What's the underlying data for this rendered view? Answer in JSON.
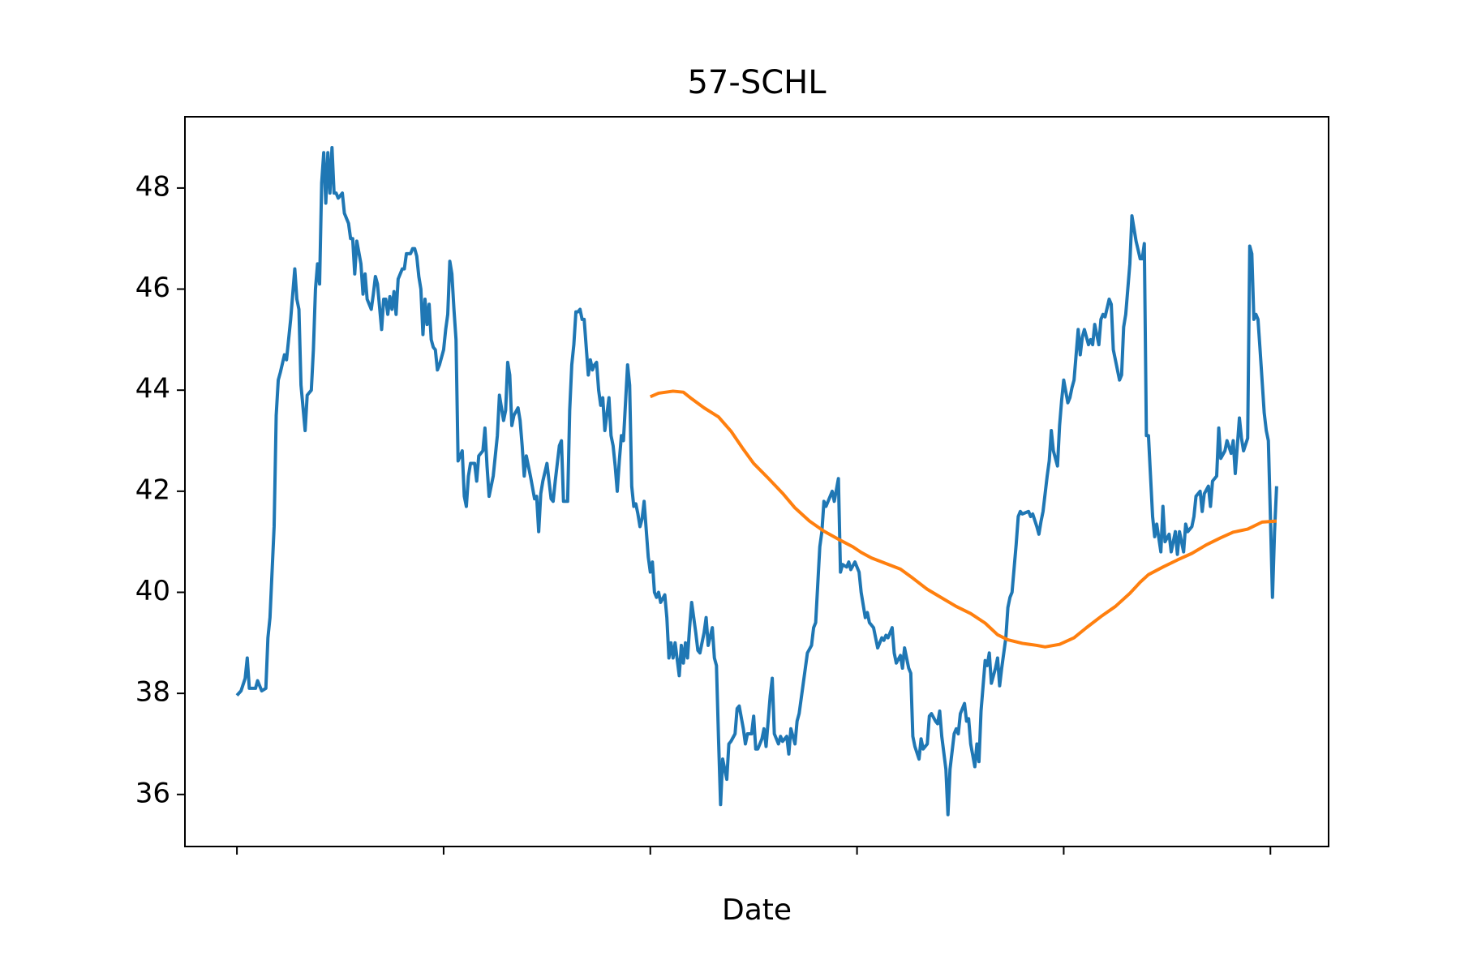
{
  "chart_data": {
    "type": "line",
    "title": "57-SCHL",
    "x_label": "Date",
    "xlim": [
      -25.15,
      528.15
    ],
    "xticks": [
      0,
      100,
      200,
      300,
      400,
      500
    ],
    "ylim": [
      34.97,
      49.41
    ],
    "yticks": [
      36,
      38,
      40,
      42,
      44,
      46,
      48
    ],
    "grid": false,
    "series": [
      {
        "color": "#1f77b4",
        "x": [
          0,
          2,
          4,
          5,
          6,
          9,
          10,
          12,
          14,
          15,
          16,
          18,
          19,
          20,
          21,
          23,
          24,
          26,
          28,
          29,
          30,
          31,
          33,
          34,
          36,
          37,
          38,
          39,
          40,
          41,
          42,
          43,
          44,
          45,
          46,
          47,
          48,
          49,
          51,
          52,
          54,
          55,
          56,
          57,
          58,
          60,
          61,
          62,
          63,
          65,
          66,
          67,
          68,
          70,
          71,
          72,
          73,
          74,
          75,
          76,
          77,
          78,
          80,
          81,
          82,
          84,
          85,
          86,
          87,
          88,
          89,
          90,
          91,
          92,
          93,
          94,
          95,
          96,
          97,
          98,
          100,
          101,
          102,
          103,
          104,
          105,
          106,
          107,
          109,
          110,
          111,
          112,
          113,
          115,
          116,
          117,
          119,
          120,
          121,
          122,
          124,
          126,
          127,
          129,
          130,
          131,
          132,
          133,
          134,
          136,
          137,
          138,
          139,
          140,
          142,
          144,
          145,
          146,
          147,
          148,
          150,
          152,
          153,
          154,
          155,
          156,
          157,
          158,
          160,
          161,
          162,
          163,
          164,
          165,
          166,
          167,
          168,
          170,
          171,
          172,
          173,
          174,
          175,
          176,
          177,
          178,
          180,
          181,
          182,
          183,
          184,
          185,
          186,
          187,
          189,
          190,
          191,
          192,
          193,
          194,
          195,
          196,
          197,
          199,
          200,
          201,
          202,
          203,
          204,
          205,
          207,
          208,
          209,
          210,
          211,
          212,
          214,
          215,
          216,
          217,
          218,
          219,
          220,
          222,
          223,
          224,
          225,
          226,
          227,
          228,
          230,
          231,
          232,
          233,
          234,
          235,
          237,
          238,
          239,
          241,
          242,
          243,
          245,
          246,
          247,
          249,
          250,
          251,
          252,
          254,
          255,
          256,
          258,
          259,
          260,
          262,
          263,
          264,
          266,
          267,
          268,
          270,
          271,
          272,
          274,
          275,
          276,
          278,
          279,
          280,
          282,
          283,
          284,
          285,
          287,
          288,
          289,
          291,
          292,
          293,
          295,
          296,
          297,
          299,
          300,
          301,
          302,
          304,
          305,
          306,
          308,
          309,
          310,
          312,
          313,
          314,
          315,
          317,
          318,
          319,
          321,
          322,
          323,
          325,
          326,
          327,
          328,
          330,
          331,
          332,
          334,
          335,
          336,
          338,
          339,
          340,
          341,
          343,
          344,
          345,
          347,
          348,
          349,
          350,
          352,
          353,
          354,
          355,
          357,
          358,
          359,
          360,
          362,
          363,
          364,
          365,
          367,
          368,
          369,
          370,
          372,
          373,
          374,
          375,
          377,
          378,
          379,
          380,
          383,
          384,
          385,
          387,
          388,
          389,
          390,
          392,
          393,
          394,
          395,
          397,
          398,
          399,
          400,
          402,
          403,
          404,
          405,
          407,
          408,
          409,
          410,
          412,
          413,
          414,
          415,
          417,
          418,
          419,
          420,
          422,
          423,
          424,
          425,
          427,
          428,
          429,
          430,
          432,
          433,
          434,
          435,
          437,
          438,
          439,
          440,
          441,
          443,
          444,
          445,
          447,
          448,
          449,
          451,
          452,
          454,
          455,
          456,
          458,
          459,
          460,
          462,
          463,
          464,
          466,
          467,
          468,
          470,
          471,
          472,
          474,
          475,
          476,
          478,
          479,
          481,
          482,
          483,
          485,
          486,
          487,
          489,
          490,
          491,
          492,
          493,
          494,
          495,
          497,
          498,
          499,
          500,
          501,
          502,
          503
        ],
        "values": [
          37.96,
          38.05,
          38.3,
          38.7,
          38.1,
          38.1,
          38.25,
          38.05,
          38.1,
          39.1,
          39.5,
          41.3,
          43.5,
          44.2,
          44.35,
          44.7,
          44.6,
          45.4,
          46.4,
          45.8,
          45.6,
          44.1,
          43.2,
          43.9,
          44.0,
          44.8,
          46.0,
          46.5,
          46.1,
          48.1,
          48.7,
          47.7,
          48.7,
          47.9,
          48.8,
          47.9,
          47.9,
          47.8,
          47.9,
          47.5,
          47.3,
          47.0,
          47.0,
          46.3,
          46.95,
          46.5,
          45.9,
          46.3,
          45.8,
          45.6,
          45.9,
          46.25,
          46.1,
          45.2,
          45.8,
          45.8,
          45.5,
          45.85,
          45.6,
          45.95,
          45.5,
          46.2,
          46.4,
          46.4,
          46.7,
          46.7,
          46.8,
          46.8,
          46.65,
          46.25,
          46.0,
          45.1,
          45.8,
          45.3,
          45.7,
          45.0,
          44.85,
          44.8,
          44.4,
          44.5,
          44.8,
          45.2,
          45.5,
          46.55,
          46.3,
          45.6,
          45.0,
          42.6,
          42.8,
          41.9,
          41.7,
          42.3,
          42.55,
          42.55,
          42.2,
          42.7,
          42.8,
          43.25,
          42.5,
          41.9,
          42.3,
          43.1,
          43.9,
          43.4,
          43.6,
          44.55,
          44.3,
          43.3,
          43.5,
          43.65,
          43.4,
          42.9,
          42.3,
          42.7,
          42.3,
          41.85,
          41.9,
          41.2,
          41.95,
          42.2,
          42.55,
          41.85,
          41.8,
          42.2,
          42.55,
          42.9,
          43.0,
          41.8,
          41.8,
          43.6,
          44.5,
          44.9,
          45.55,
          45.55,
          45.6,
          45.4,
          45.4,
          44.3,
          44.6,
          44.4,
          44.5,
          44.55,
          44.0,
          43.7,
          43.85,
          43.2,
          43.85,
          43.1,
          42.9,
          42.5,
          42.0,
          42.6,
          43.1,
          43.0,
          44.5,
          44.1,
          42.1,
          41.7,
          41.75,
          41.55,
          41.3,
          41.45,
          41.8,
          40.7,
          40.4,
          40.6,
          40.0,
          39.9,
          40.0,
          39.8,
          39.95,
          39.5,
          38.7,
          39.0,
          38.7,
          39.0,
          38.35,
          38.95,
          38.6,
          39.0,
          38.7,
          39.3,
          39.8,
          39.2,
          38.85,
          38.8,
          39.0,
          39.2,
          39.5,
          38.95,
          39.3,
          38.7,
          38.55,
          37.1,
          35.8,
          36.7,
          36.3,
          37.0,
          37.05,
          37.2,
          37.7,
          37.75,
          37.3,
          37.0,
          37.2,
          37.2,
          37.55,
          36.9,
          36.9,
          37.1,
          37.3,
          36.95,
          37.95,
          38.3,
          37.2,
          37.0,
          37.15,
          37.05,
          37.15,
          36.8,
          37.3,
          37.0,
          37.45,
          37.6,
          38.2,
          38.5,
          38.8,
          38.95,
          39.3,
          39.4,
          40.9,
          41.2,
          41.8,
          41.7,
          41.9,
          42.0,
          41.8,
          42.25,
          40.4,
          40.55,
          40.5,
          40.6,
          40.45,
          40.6,
          40.5,
          40.4,
          40.0,
          39.5,
          39.6,
          39.4,
          39.3,
          39.1,
          38.9,
          39.1,
          39.05,
          39.15,
          39.1,
          39.3,
          38.8,
          38.6,
          38.75,
          38.5,
          38.9,
          38.5,
          38.4,
          37.15,
          36.95,
          36.7,
          37.1,
          36.9,
          37.0,
          37.55,
          37.6,
          37.45,
          37.4,
          37.65,
          37.15,
          36.5,
          35.6,
          36.5,
          37.2,
          37.3,
          37.2,
          37.6,
          37.8,
          37.45,
          37.5,
          37.0,
          36.55,
          37.0,
          36.65,
          37.65,
          38.65,
          38.55,
          38.8,
          38.2,
          38.5,
          38.7,
          38.15,
          38.5,
          39.1,
          39.7,
          39.9,
          40.0,
          40.95,
          41.5,
          41.6,
          41.55,
          41.6,
          41.5,
          41.55,
          41.3,
          41.15,
          41.4,
          41.6,
          42.3,
          42.6,
          43.2,
          42.8,
          42.5,
          43.3,
          43.8,
          44.2,
          43.75,
          43.85,
          44.05,
          44.2,
          45.2,
          44.7,
          45.05,
          45.2,
          44.9,
          45.0,
          44.9,
          45.3,
          44.9,
          45.4,
          45.5,
          45.45,
          45.8,
          45.7,
          44.8,
          44.6,
          44.2,
          44.3,
          45.25,
          45.5,
          46.5,
          47.45,
          47.2,
          46.95,
          46.6,
          46.6,
          46.9,
          43.1,
          43.1,
          41.5,
          41.1,
          41.35,
          40.8,
          41.7,
          41.0,
          41.15,
          40.8,
          41.2,
          40.75,
          41.2,
          40.8,
          41.35,
          41.2,
          41.3,
          41.5,
          41.9,
          42.0,
          41.6,
          41.95,
          42.1,
          41.7,
          42.2,
          42.3,
          43.25,
          42.65,
          42.8,
          43.0,
          42.75,
          43.0,
          42.35,
          43.45,
          43.05,
          42.8,
          43.05,
          46.85,
          46.7,
          45.4,
          45.5,
          45.4,
          44.8,
          43.55,
          43.2,
          43.0,
          41.5,
          39.9,
          41.2,
          42.1
        ]
      },
      {
        "color": "#ff7f0e",
        "x": [
          200,
          204,
          211,
          216,
          220,
          226,
          233,
          239,
          245,
          250,
          257,
          264,
          270,
          277,
          284,
          291,
          298,
          302,
          307,
          314,
          321,
          327,
          334,
          341,
          348,
          355,
          362,
          368,
          373,
          380,
          387,
          391,
          398,
          405,
          411,
          418,
          425,
          432,
          437,
          441,
          448,
          455,
          462,
          469,
          476,
          482,
          489,
          496,
          503
        ],
        "values": [
          43.87,
          43.94,
          43.98,
          43.96,
          43.83,
          43.65,
          43.47,
          43.19,
          42.83,
          42.55,
          42.26,
          41.96,
          41.67,
          41.41,
          41.21,
          41.05,
          40.9,
          40.79,
          40.68,
          40.57,
          40.46,
          40.28,
          40.06,
          39.89,
          39.72,
          39.58,
          39.39,
          39.16,
          39.06,
          38.99,
          38.95,
          38.92,
          38.97,
          39.1,
          39.3,
          39.52,
          39.72,
          39.98,
          40.2,
          40.35,
          40.5,
          40.64,
          40.77,
          40.94,
          41.08,
          41.19,
          41.25,
          41.39,
          41.41
        ]
      }
    ]
  }
}
